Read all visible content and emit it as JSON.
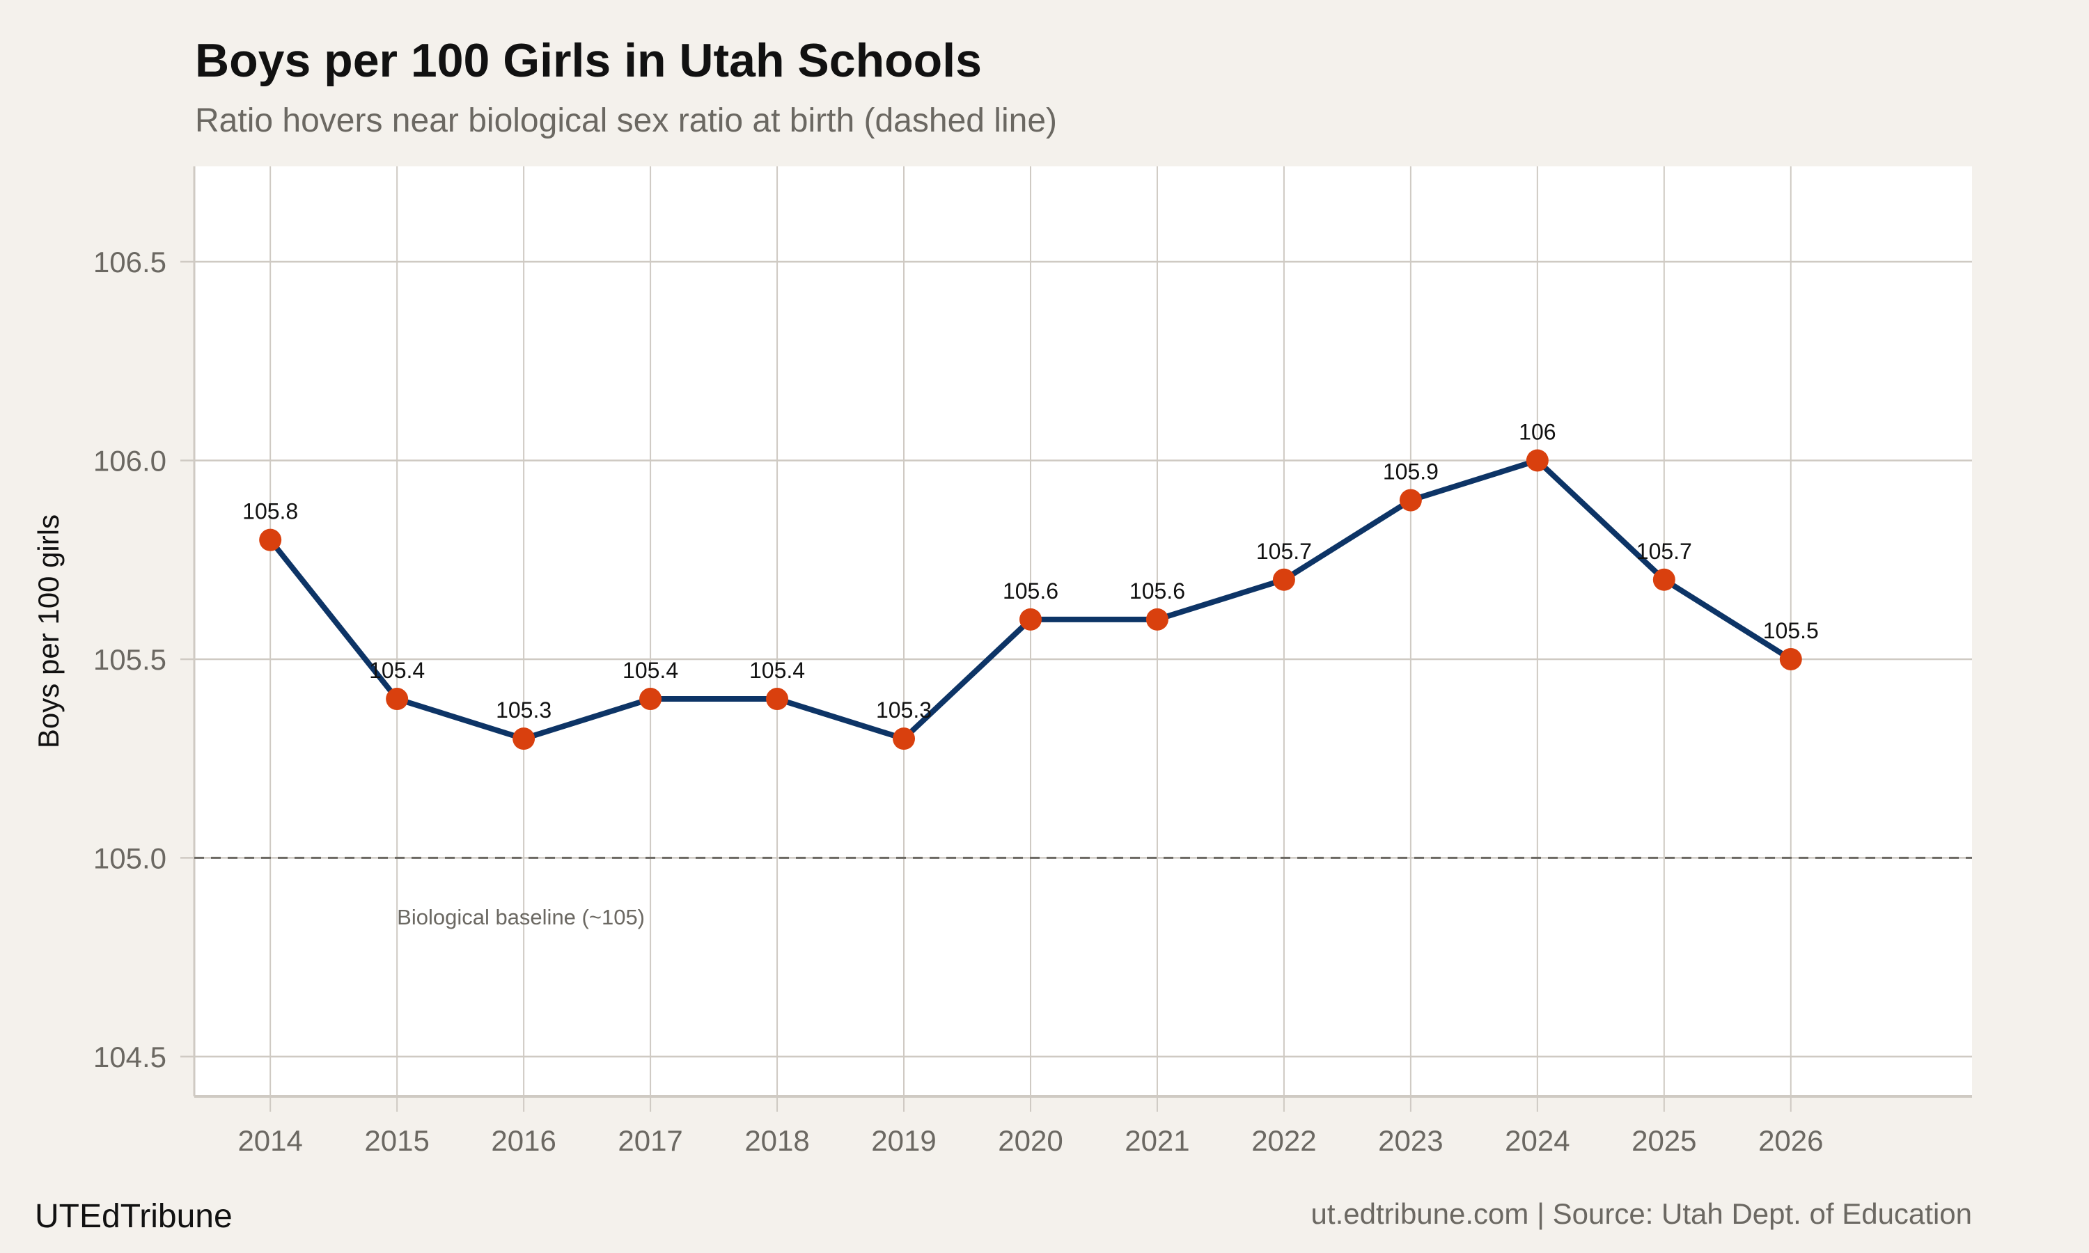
{
  "chart_data": {
    "type": "line",
    "title": "Boys per 100 Girls in Utah Schools",
    "subtitle": "Ratio hovers near biological sex ratio at birth (dashed line)",
    "xlabel": "",
    "ylabel": "Boys per 100 girls",
    "x": [
      2014,
      2015,
      2016,
      2017,
      2018,
      2019,
      2020,
      2021,
      2022,
      2023,
      2024,
      2025,
      2026
    ],
    "values": [
      105.8,
      105.4,
      105.3,
      105.4,
      105.4,
      105.3,
      105.6,
      105.6,
      105.7,
      105.9,
      106.0,
      105.7,
      105.5
    ],
    "data_labels": [
      "105.8",
      "105.4",
      "105.3",
      "105.4",
      "105.4",
      "105.3",
      "105.6",
      "105.6",
      "105.7",
      "105.9",
      "106",
      "105.7",
      "105.5"
    ],
    "xlim": [
      2013.4,
      2027.43
    ],
    "ylim": [
      104.4,
      106.74
    ],
    "yticks": [
      104.5,
      105.0,
      105.5,
      106.0,
      106.5
    ],
    "ytick_labels": [
      "104.5",
      "105.0",
      "105.5",
      "106.0",
      "106.5"
    ],
    "xtick_labels": [
      "2014",
      "2015",
      "2016",
      "2017",
      "2018",
      "2019",
      "2020",
      "2021",
      "2022",
      "2023",
      "2024",
      "2025",
      "2026"
    ],
    "reference_line": {
      "y": 105.0,
      "style": "dashed",
      "color": "#6b6862"
    },
    "annotation": {
      "text": "Biological baseline (~105)",
      "x": 2015,
      "y": 104.85
    },
    "grid": true,
    "colors": {
      "line": "#0d3466",
      "points": "#d9400e",
      "background": "#f4f1ec",
      "panel": "#ffffff",
      "grid": "#cfcac3"
    }
  },
  "footer": {
    "brand": "UTEdTribune",
    "source": "ut.edtribune.com | Source: Utah Dept. of Education"
  }
}
